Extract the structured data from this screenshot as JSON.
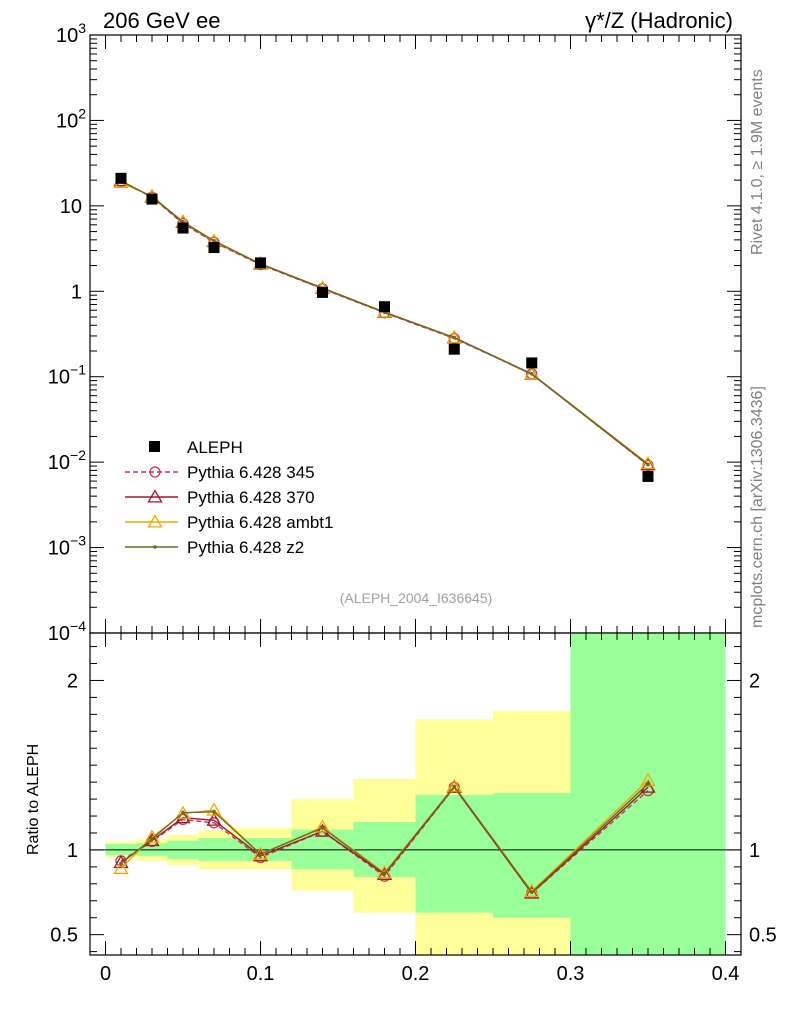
{
  "chart_data": {
    "type": "scatter",
    "title_left": "206 GeV ee",
    "title_right": "γ*/Z (Hadronic)",
    "side_label_top": "Rivet 4.1.0, ≥ 1.9M events",
    "side_label_bottom": "mcplots.cern.ch [arXiv:1306.3436]",
    "analysis_ref": "(ALEPH_2004_I636645)",
    "ratio_ylabel": "Ratio to ALEPH",
    "x": [
      0.01,
      0.03,
      0.05,
      0.07,
      0.1,
      0.14,
      0.18,
      0.225,
      0.275,
      0.35
    ],
    "bin_edges": [
      0.0,
      0.02,
      0.04,
      0.06,
      0.08,
      0.12,
      0.16,
      0.2,
      0.25,
      0.3,
      0.4
    ],
    "xlim": [
      -0.01,
      0.41
    ],
    "upper_ylim": [
      0.0001,
      1000
    ],
    "ratio_ylim": [
      0.38,
      2.28
    ],
    "xticks": [
      "0",
      "0.1",
      "0.2",
      "0.3",
      "0.4"
    ],
    "xtick_values": [
      0,
      0.1,
      0.2,
      0.3,
      0.4
    ],
    "upper_yticks": [
      {
        "value": 1000,
        "base": "10",
        "exp": "3"
      },
      {
        "value": 100,
        "base": "10",
        "exp": "2"
      },
      {
        "value": 10,
        "base": "10",
        "exp": ""
      },
      {
        "value": 1,
        "base": "1",
        "exp": ""
      },
      {
        "value": 0.1,
        "base": "10",
        "exp": "−1"
      },
      {
        "value": 0.01,
        "base": "10",
        "exp": "−2"
      },
      {
        "value": 0.001,
        "base": "10",
        "exp": "−3"
      },
      {
        "value": 0.0001,
        "base": "10",
        "exp": "−4"
      }
    ],
    "ratio_yticks": [
      "0.5",
      "1",
      "2"
    ],
    "ratio_ytick_values": [
      0.5,
      1,
      2
    ],
    "data": {
      "name": "ALEPH",
      "values": [
        21.0,
        12.0,
        5.5,
        3.25,
        2.15,
        0.97,
        0.66,
        0.21,
        0.145,
        0.0068
      ]
    },
    "series": [
      {
        "name": "Pythia 6.428 345",
        "color": "#cc3355",
        "marker": "circle",
        "dashed": true,
        "values": [
          19.5,
          12.6,
          6.2,
          3.75,
          2.05,
          1.07,
          0.56,
          0.28,
          0.108,
          0.0092
        ]
      },
      {
        "name": "Pythia 6.428 370",
        "color": "#a0182e",
        "marker": "triangle",
        "dashed": false,
        "values": [
          19.6,
          12.7,
          6.4,
          3.82,
          2.08,
          1.08,
          0.565,
          0.285,
          0.107,
          0.0093
        ]
      },
      {
        "name": "Pythia 6.428 ambt1",
        "color": "#f0a800",
        "marker": "triangle",
        "dashed": false,
        "values": [
          18.7,
          12.9,
          6.5,
          3.85,
          2.1,
          1.09,
          0.57,
          0.287,
          0.108,
          0.0096
        ]
      },
      {
        "name": "Pythia 6.428 z2",
        "color": "#6b6b1e",
        "marker": "dot",
        "dashed": false,
        "values": [
          19.4,
          12.8,
          6.5,
          3.9,
          2.09,
          1.09,
          0.57,
          0.288,
          0.108,
          0.0094
        ]
      }
    ],
    "ratio_series": [
      {
        "name": "Pythia 6.428 345",
        "values": [
          0.935,
          1.05,
          1.18,
          1.16,
          0.955,
          1.11,
          0.845,
          1.37,
          0.745,
          1.35
        ]
      },
      {
        "name": "Pythia 6.428 370",
        "values": [
          0.925,
          1.055,
          1.19,
          1.175,
          0.965,
          1.11,
          0.855,
          1.37,
          0.745,
          1.37
        ]
      },
      {
        "name": "Pythia 6.428 ambt1",
        "values": [
          0.89,
          1.075,
          1.215,
          1.235,
          0.975,
          1.135,
          0.865,
          1.375,
          0.755,
          1.41
        ]
      },
      {
        "name": "Pythia 6.428 z2",
        "values": [
          0.92,
          1.065,
          1.22,
          1.225,
          0.975,
          1.13,
          0.86,
          1.375,
          0.75,
          1.39
        ]
      }
    ],
    "uncertainty_bands": {
      "stat_low": [
        0.97,
        0.965,
        0.945,
        0.935,
        0.935,
        0.885,
        0.84,
        0.63,
        0.6,
        0.38
      ],
      "stat_high": [
        1.035,
        1.04,
        1.055,
        1.07,
        1.07,
        1.12,
        1.165,
        1.325,
        1.335,
        2.28
      ],
      "total_low": [
        0.955,
        0.935,
        0.91,
        0.885,
        0.885,
        0.76,
        0.63,
        0.38,
        0.38,
        0.38
      ],
      "total_high": [
        1.05,
        1.065,
        1.09,
        1.115,
        1.13,
        1.3,
        1.42,
        1.77,
        1.82,
        2.28
      ]
    }
  }
}
